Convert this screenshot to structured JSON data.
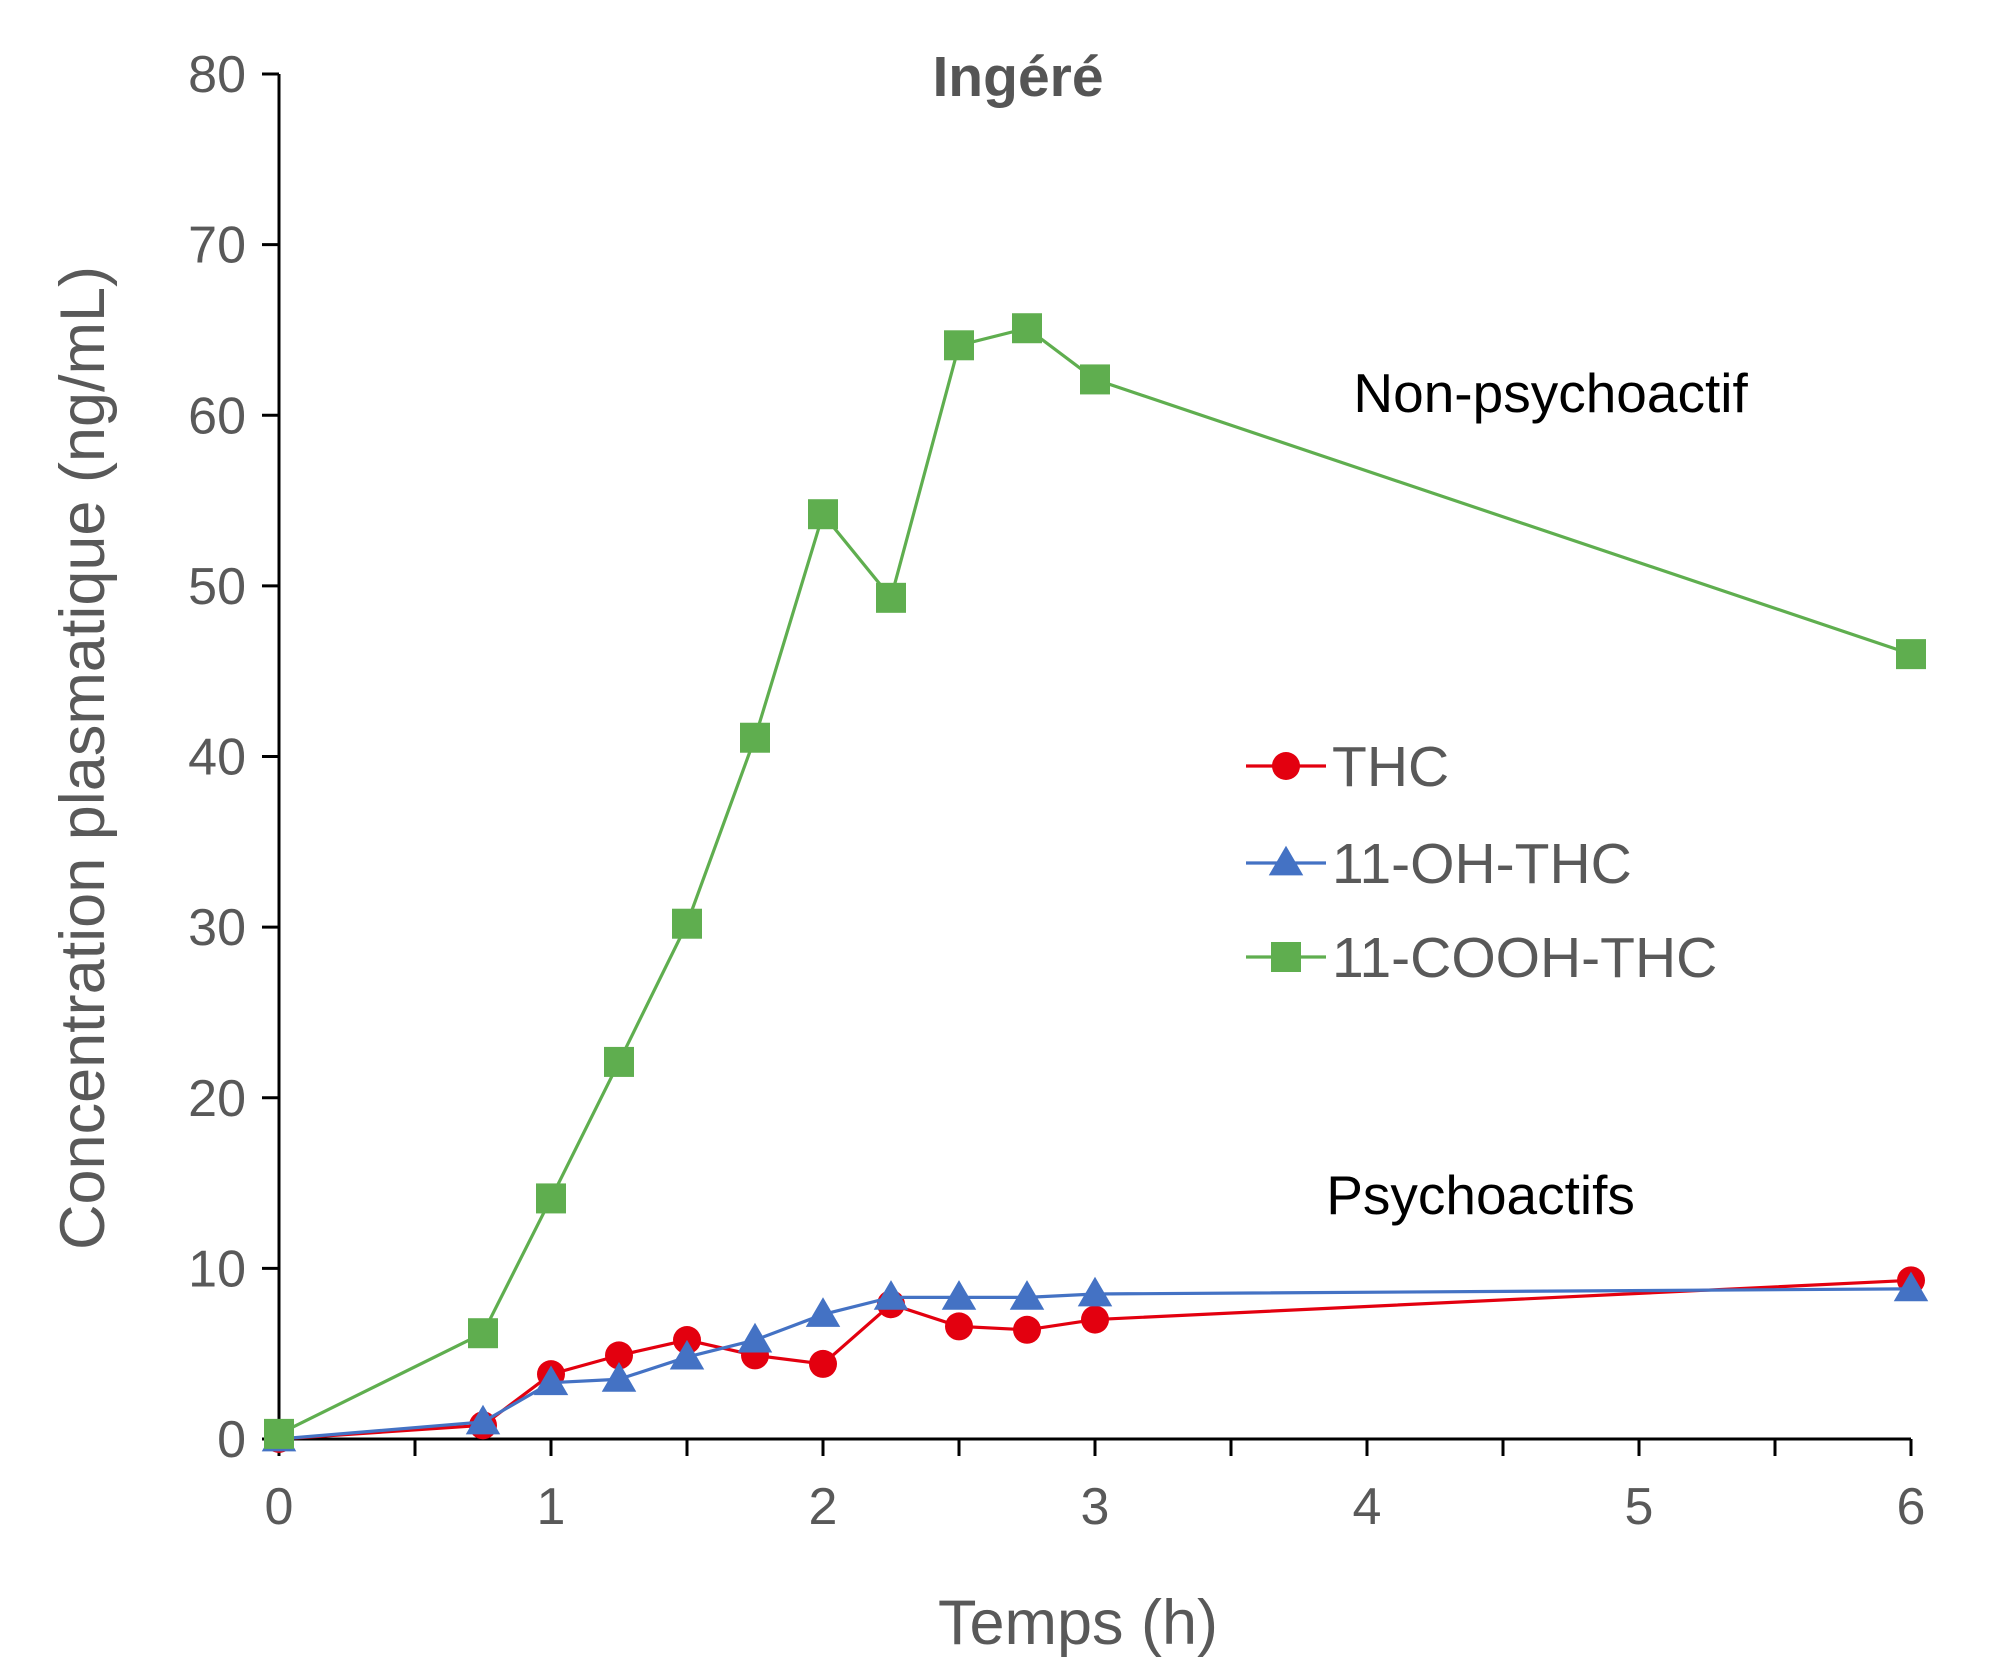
{
  "chart_data": {
    "type": "line",
    "title": "Ingéré",
    "xlabel": "Temps (h)",
    "ylabel": "Concentration plasmatique (ng/mL)",
    "xlim": [
      0,
      6
    ],
    "ylim": [
      0,
      80
    ],
    "x_ticks": [
      0,
      1,
      2,
      3,
      4,
      5,
      6
    ],
    "y_ticks": [
      0,
      10,
      20,
      30,
      40,
      50,
      60,
      70,
      80
    ],
    "grid": false,
    "legend_position": "right-middle",
    "series": [
      {
        "name": "THC",
        "color": "#e3000f",
        "marker": "circle",
        "x": [
          0,
          0.75,
          1,
          1.25,
          1.5,
          1.75,
          2,
          2.25,
          2.5,
          2.75,
          3,
          6
        ],
        "y": [
          0,
          0.8,
          3.8,
          4.9,
          5.8,
          4.9,
          4.4,
          7.9,
          6.6,
          6.4,
          7.0,
          9.3
        ]
      },
      {
        "name": "11-OH-THC",
        "color": "#4472c4",
        "marker": "triangle",
        "x": [
          0,
          0.75,
          1,
          1.25,
          1.5,
          1.75,
          2,
          2.25,
          2.5,
          2.75,
          3,
          6
        ],
        "y": [
          0,
          1.0,
          3.3,
          3.5,
          4.8,
          5.8,
          7.3,
          8.3,
          8.3,
          8.3,
          8.5,
          8.8
        ]
      },
      {
        "name": "11-COOH-THC",
        "color": "#5fae4f",
        "marker": "square",
        "x": [
          0,
          0.75,
          1,
          1.25,
          1.5,
          1.75,
          2,
          2.25,
          2.5,
          2.75,
          3,
          6
        ],
        "y": [
          0.3,
          6.2,
          14.1,
          22.1,
          30.2,
          41.1,
          54.2,
          49.3,
          64.1,
          65.1,
          62.1,
          46.0
        ]
      }
    ],
    "annotations": [
      {
        "text": "Non-psychoactif",
        "x": 3.95,
        "y": 60.2
      },
      {
        "text": "Psychoactifs",
        "x": 3.85,
        "y": 13.2
      }
    ]
  }
}
